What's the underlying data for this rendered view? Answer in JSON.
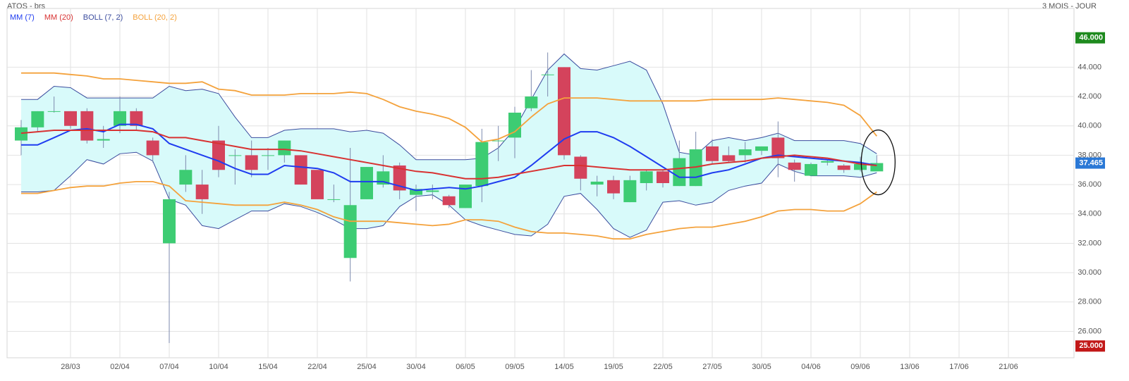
{
  "chart_data": {
    "type": "candlestick",
    "title": "ATOS - brs",
    "subtitle": "3 MOIS - JOUR",
    "categories": [
      null,
      null,
      null,
      "28/03",
      null,
      null,
      "02/04",
      null,
      null,
      "07/04",
      null,
      null,
      "10/04",
      null,
      null,
      "15/04",
      null,
      null,
      "22/04",
      null,
      null,
      "25/04",
      null,
      null,
      "30/04",
      null,
      null,
      "06/05",
      null,
      null,
      "09/05",
      null,
      null,
      "14/05",
      null,
      null,
      "19/05",
      null,
      null,
      "22/05",
      null,
      null,
      "27/05",
      null,
      null,
      "30/05",
      null,
      null,
      "04/06",
      null,
      null,
      "09/06",
      null,
      null,
      "13/06",
      null,
      null,
      "17/06",
      null,
      null,
      "21/06"
    ],
    "open": [
      39.0,
      39.9,
      41.0,
      41.0,
      41.0,
      39.0,
      40.0,
      41.0,
      39.0,
      32.0,
      36.0,
      36.0,
      39.0,
      38.0,
      38.0,
      38.0,
      38.0,
      38.0,
      37.0,
      35.0,
      31.0,
      35.0,
      36.0,
      37.3,
      35.3,
      35.5,
      35.2,
      34.4,
      35.9,
      39.0,
      39.2,
      41.2,
      43.5,
      44.0,
      37.9,
      36.0,
      36.3,
      34.8,
      36.1,
      36.9,
      35.9,
      35.9,
      38.6,
      38.0,
      38.0,
      38.3,
      39.2,
      37.5,
      36.6,
      37.5,
      37.3,
      37.0,
      36.9,
      null,
      null,
      null,
      null,
      null,
      null,
      null,
      null
    ],
    "high": [
      40.4,
      41.0,
      42.0,
      41.0,
      41.2,
      40.0,
      42.0,
      41.2,
      39.2,
      35.5,
      38.0,
      37.0,
      40.0,
      38.4,
      39.0,
      38.5,
      39.0,
      38.0,
      37.0,
      36.0,
      38.5,
      37.2,
      38.0,
      37.5,
      36.0,
      36.0,
      35.3,
      36.0,
      39.8,
      40.0,
      41.3,
      43.8,
      45.0,
      44.0,
      38.0,
      36.6,
      36.6,
      36.6,
      37.0,
      37.0,
      39.0,
      39.6,
      39.1,
      38.6,
      38.9,
      38.6,
      40.3,
      37.7,
      37.5,
      37.7,
      37.4,
      37.9,
      38.0,
      null,
      null,
      null,
      null,
      null,
      null,
      null,
      null
    ],
    "low": [
      38.0,
      39.6,
      40.9,
      39.8,
      38.8,
      38.5,
      39.5,
      39.7,
      37.5,
      25.2,
      35.5,
      34.0,
      36.5,
      36.0,
      36.5,
      37.0,
      37.5,
      36.0,
      35.0,
      34.8,
      29.4,
      35.0,
      35.8,
      35.0,
      34.2,
      35.0,
      34.4,
      34.4,
      34.8,
      37.6,
      37.8,
      41.0,
      42.0,
      37.7,
      35.6,
      35.2,
      35.0,
      34.8,
      35.6,
      35.8,
      35.9,
      35.9,
      37.4,
      37.5,
      37.5,
      38.0,
      36.5,
      36.2,
      36.6,
      37.3,
      36.8,
      36.9,
      36.9,
      null,
      null,
      null,
      null,
      null,
      null,
      null,
      null
    ],
    "close": [
      39.9,
      41.0,
      41.0,
      40.0,
      39.0,
      39.1,
      41.0,
      40.0,
      38.0,
      35.0,
      37.0,
      35.0,
      37.0,
      38.0,
      37.0,
      38.0,
      39.0,
      36.0,
      35.0,
      35.0,
      34.6,
      37.2,
      36.9,
      35.6,
      35.7,
      35.6,
      34.6,
      36.0,
      38.9,
      39.0,
      40.9,
      42.0,
      43.5,
      38.0,
      36.4,
      36.2,
      35.4,
      36.3,
      36.9,
      36.1,
      37.8,
      38.4,
      37.6,
      37.6,
      38.4,
      38.6,
      37.8,
      37.0,
      37.4,
      37.6,
      37.0,
      37.4,
      37.465,
      null,
      null,
      null,
      null,
      null,
      null,
      null,
      null
    ],
    "up_color": "#3dcc73",
    "down_color": "#d4435c",
    "series": [
      {
        "name": "MM (7)",
        "color": "#1f3cf0",
        "values": [
          38.7,
          38.7,
          39.2,
          39.7,
          39.8,
          39.6,
          40.1,
          40.1,
          39.8,
          38.8,
          38.4,
          38.0,
          37.6,
          37.1,
          36.7,
          36.7,
          37.3,
          37.2,
          37.1,
          36.8,
          36.2,
          36.2,
          36.2,
          35.9,
          35.6,
          35.7,
          35.8,
          35.7,
          35.9,
          36.2,
          36.5,
          37.3,
          38.2,
          39.1,
          39.6,
          39.6,
          39.2,
          38.6,
          37.9,
          37.2,
          36.5,
          36.5,
          36.8,
          37.0,
          37.4,
          37.8,
          38.0,
          37.9,
          37.8,
          37.7,
          37.6,
          37.5,
          37.3,
          null,
          null,
          null,
          null,
          null,
          null,
          null,
          null
        ]
      },
      {
        "name": "MM (20)",
        "color": "#d83232",
        "values": [
          39.5,
          39.6,
          39.7,
          39.7,
          39.7,
          39.7,
          39.7,
          39.7,
          39.6,
          39.2,
          39.2,
          39.0,
          38.8,
          38.6,
          38.4,
          38.4,
          38.4,
          38.3,
          38.1,
          37.9,
          37.7,
          37.5,
          37.3,
          37.1,
          36.9,
          36.8,
          36.6,
          36.4,
          36.4,
          36.5,
          36.7,
          36.9,
          37.1,
          37.3,
          37.3,
          37.2,
          37.1,
          37.0,
          37.0,
          37.0,
          37.1,
          37.2,
          37.4,
          37.5,
          37.6,
          37.8,
          37.9,
          38.0,
          37.9,
          37.8,
          37.6,
          37.4,
          37.3,
          null,
          null,
          null,
          null,
          null,
          null,
          null,
          null
        ]
      },
      {
        "name": "BOLL (7, 2)",
        "color": "#3b4c9e",
        "fill": "#d8fafa",
        "upper": [
          41.8,
          41.8,
          42.7,
          42.6,
          41.9,
          41.9,
          41.9,
          41.9,
          41.9,
          42.7,
          42.4,
          42.5,
          42.2,
          40.6,
          39.2,
          39.2,
          39.7,
          39.8,
          39.8,
          39.8,
          39.6,
          39.7,
          39.5,
          38.7,
          37.7,
          37.7,
          37.7,
          37.7,
          37.8,
          38.5,
          39.8,
          41.8,
          43.8,
          44.9,
          43.9,
          43.8,
          44.1,
          44.4,
          43.8,
          41.5,
          38.2,
          38.0,
          39.0,
          39.2,
          39.0,
          39.2,
          39.5,
          39.0,
          39.0,
          39.0,
          39.0,
          38.8,
          38.1,
          null,
          null,
          null,
          null,
          null,
          null,
          null,
          null
        ],
        "lower": [
          35.5,
          35.5,
          35.6,
          36.6,
          37.7,
          37.4,
          38.1,
          38.2,
          37.6,
          35.0,
          34.6,
          33.2,
          33.0,
          33.6,
          34.2,
          34.2,
          34.7,
          34.5,
          34.1,
          33.6,
          33.0,
          33.0,
          33.2,
          34.5,
          35.2,
          35.3,
          34.6,
          33.6,
          33.2,
          32.9,
          32.6,
          32.5,
          33.3,
          35.2,
          35.4,
          34.3,
          33.0,
          32.4,
          32.9,
          34.8,
          34.9,
          34.6,
          34.8,
          35.6,
          35.9,
          36.1,
          37.4,
          36.9,
          36.6,
          36.6,
          36.6,
          36.5,
          36.8,
          null,
          null,
          null,
          null,
          null,
          null,
          null,
          null
        ]
      },
      {
        "name": "BOLL (20, 2)",
        "color": "#f4a23c",
        "upper": [
          43.6,
          43.6,
          43.6,
          43.5,
          43.4,
          43.2,
          43.2,
          43.1,
          43.0,
          42.9,
          42.9,
          43.0,
          42.5,
          42.4,
          42.1,
          42.1,
          42.1,
          42.2,
          42.2,
          42.2,
          42.3,
          42.2,
          41.8,
          41.3,
          41.0,
          40.8,
          40.5,
          39.9,
          38.9,
          39.1,
          39.6,
          40.6,
          41.5,
          41.9,
          41.9,
          41.9,
          41.8,
          41.7,
          41.7,
          41.7,
          41.7,
          41.7,
          41.8,
          41.8,
          41.8,
          41.8,
          41.9,
          41.8,
          41.7,
          41.6,
          41.4,
          40.7,
          39.3,
          null,
          null,
          null,
          null,
          null,
          null,
          null,
          null
        ],
        "lower": [
          35.4,
          35.4,
          35.6,
          35.8,
          35.9,
          35.9,
          36.1,
          36.2,
          36.2,
          35.9,
          34.9,
          34.8,
          34.7,
          34.6,
          34.6,
          34.6,
          34.8,
          34.6,
          34.3,
          33.8,
          33.5,
          33.5,
          33.5,
          33.4,
          33.3,
          33.2,
          33.3,
          33.6,
          33.6,
          33.5,
          33.1,
          32.8,
          32.7,
          32.7,
          32.6,
          32.5,
          32.3,
          32.3,
          32.6,
          32.8,
          33.0,
          33.1,
          33.1,
          33.3,
          33.5,
          33.8,
          34.2,
          34.3,
          34.3,
          34.2,
          34.2,
          34.7,
          35.5,
          null,
          null,
          null,
          null,
          null,
          null,
          null,
          null
        ]
      }
    ],
    "ylim": [
      24.2,
      48.0
    ],
    "yticks": [
      {
        "value": 26,
        "label": "26.000"
      },
      {
        "value": 28,
        "label": "28.000"
      },
      {
        "value": 30,
        "label": "30.000"
      },
      {
        "value": 32,
        "label": "32.000"
      },
      {
        "value": 34,
        "label": "34.000"
      },
      {
        "value": 36,
        "label": "36.000"
      },
      {
        "value": 38,
        "label": "38.000"
      },
      {
        "value": 40,
        "label": "40.000"
      },
      {
        "value": 42,
        "label": "42.000"
      },
      {
        "value": 44,
        "label": "44.000"
      }
    ],
    "range_markers": [
      {
        "value": 46,
        "label": "46.000",
        "color": "#1e8a1e"
      },
      {
        "value": 25,
        "label": "25.000",
        "color": "#c21818"
      }
    ],
    "last_price": {
      "value": 37.465,
      "label": "37.465",
      "color": "#2a78d6"
    },
    "grid": true
  }
}
